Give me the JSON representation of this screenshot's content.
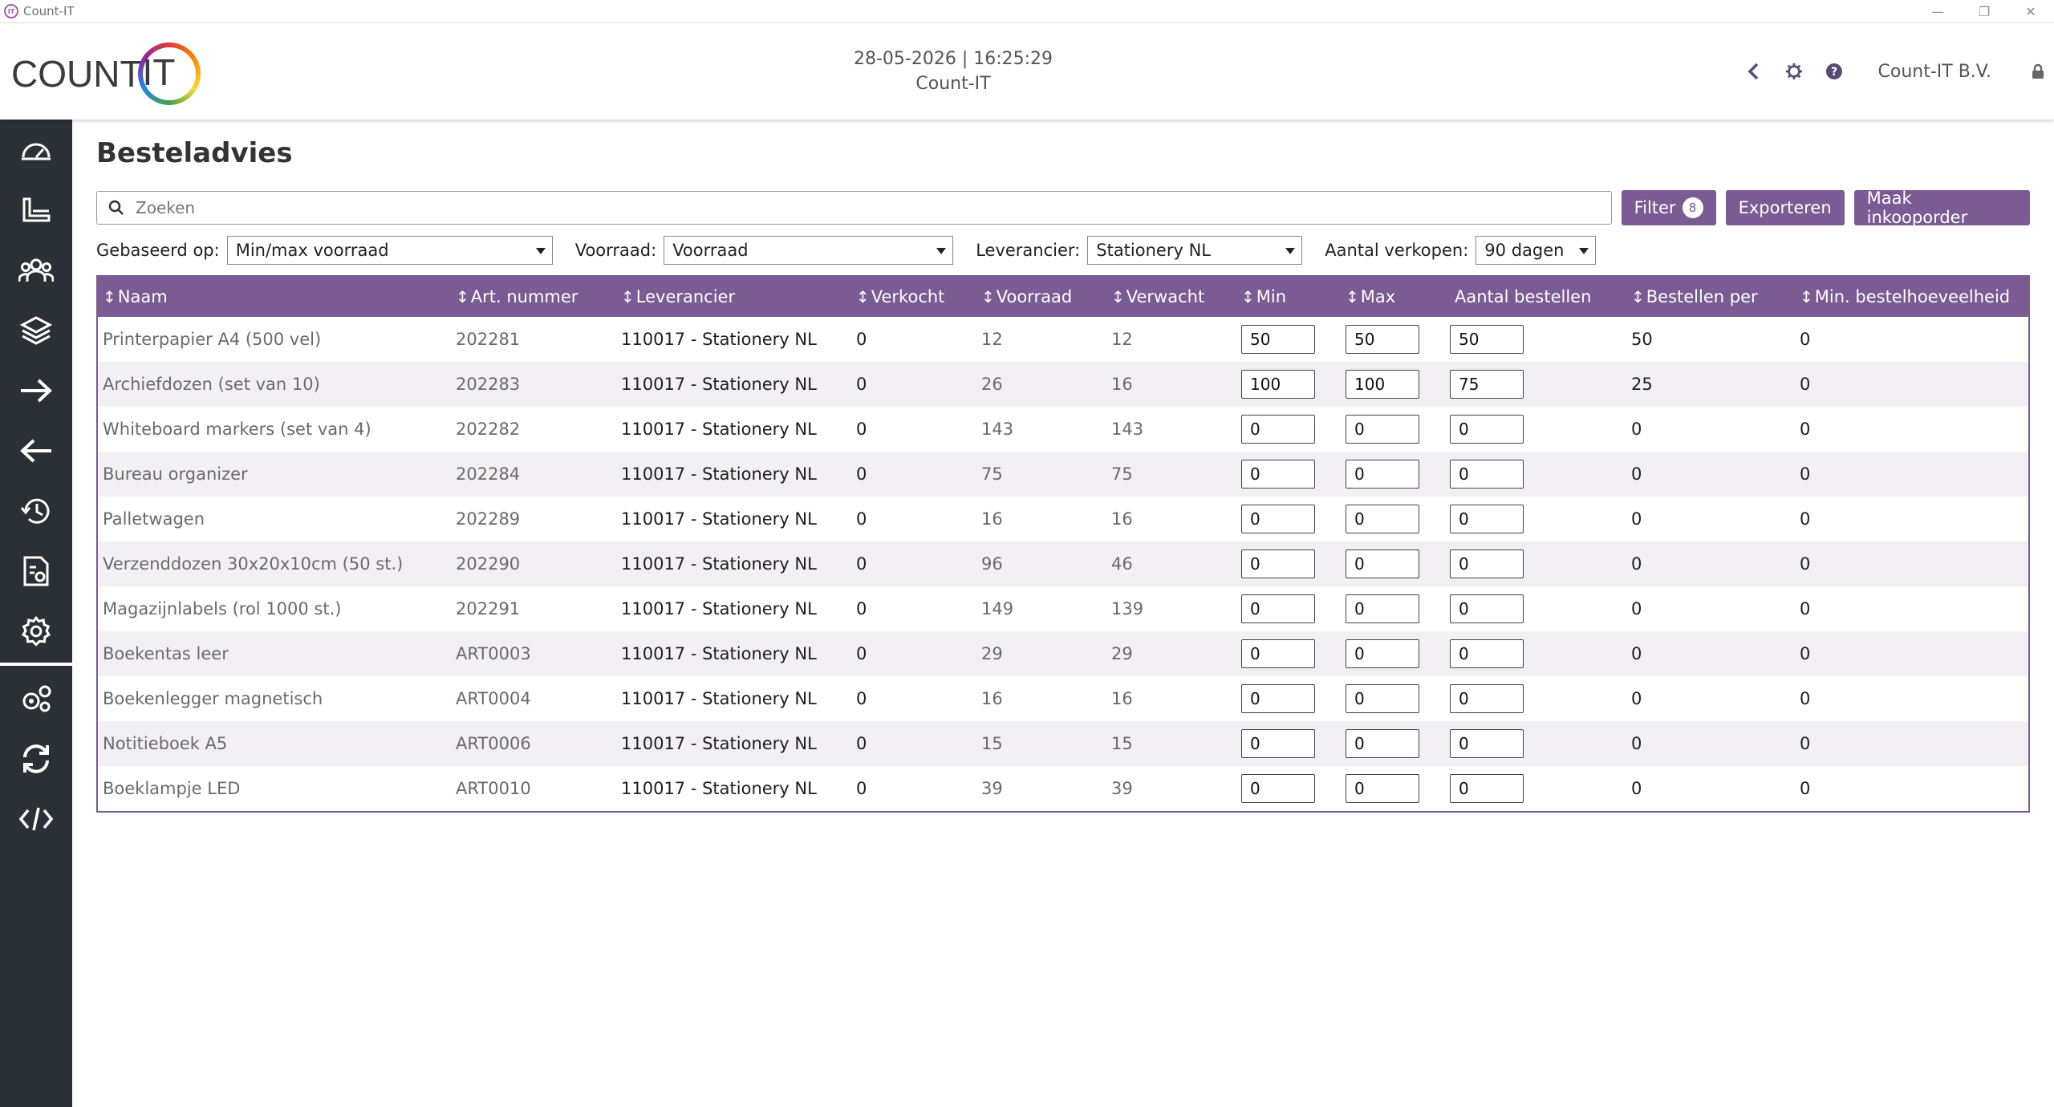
{
  "window": {
    "title": "Count-IT",
    "controls": [
      "—",
      "❐",
      "✕"
    ]
  },
  "header": {
    "logo_text": "COUNT",
    "logo_it": "IT",
    "datetime": "28-05-2026 | 16:25:29",
    "subtitle": "Count-IT",
    "company": "Count-IT B.V.",
    "icons": [
      "back-icon",
      "gear-icon",
      "help-icon",
      "lock-icon"
    ]
  },
  "sidebar": {
    "items": [
      "dashboard-icon",
      "desk-icon",
      "users-icon",
      "layers-icon",
      "arrow-right-icon",
      "arrow-left-icon",
      "history-icon",
      "report-icon",
      "settings-icon",
      "multi-gear-icon",
      "sync-icon",
      "code-icon"
    ]
  },
  "page": {
    "title": "Besteladvies",
    "search_placeholder": "Zoeken",
    "filter_label": "Filter",
    "filter_count": "8",
    "export_label": "Exporteren",
    "create_order_label": "Maak inkooporder"
  },
  "filters": {
    "based_on_label": "Gebaseerd op:",
    "based_on_value": "Min/max voorraad",
    "stock_label": "Voorraad:",
    "stock_value": "Voorraad",
    "supplier_label": "Leverancier:",
    "supplier_value": "Stationery NL",
    "sales_label": "Aantal verkopen:",
    "sales_value": "90 dagen"
  },
  "table": {
    "columns": [
      "Naam",
      "Art. nummer",
      "Leverancier",
      "Verkocht",
      "Voorraad",
      "Verwacht",
      "Min",
      "Max",
      "Aantal bestellen",
      "Bestellen per",
      "Min. bestelhoeveelheid"
    ],
    "rows": [
      [
        "Printerpapier A4 (500 vel)",
        "202281",
        "110017 - Stationery NL",
        "0",
        "12",
        "12",
        "50",
        "50",
        "50",
        "50",
        "0"
      ],
      [
        "Archiefdozen (set van 10)",
        "202283",
        "110017 - Stationery NL",
        "0",
        "26",
        "16",
        "100",
        "100",
        "75",
        "25",
        "0"
      ],
      [
        "Whiteboard markers (set van 4)",
        "202282",
        "110017 - Stationery NL",
        "0",
        "143",
        "143",
        "0",
        "0",
        "0",
        "0",
        "0"
      ],
      [
        "Bureau organizer",
        "202284",
        "110017 - Stationery NL",
        "0",
        "75",
        "75",
        "0",
        "0",
        "0",
        "0",
        "0"
      ],
      [
        "Palletwagen",
        "202289",
        "110017 - Stationery NL",
        "0",
        "16",
        "16",
        "0",
        "0",
        "0",
        "0",
        "0"
      ],
      [
        "Verzenddozen 30x20x10cm (50 st.)",
        "202290",
        "110017 - Stationery NL",
        "0",
        "96",
        "46",
        "0",
        "0",
        "0",
        "0",
        "0"
      ],
      [
        "Magazijnlabels (rol 1000 st.)",
        "202291",
        "110017 - Stationery NL",
        "0",
        "149",
        "139",
        "0",
        "0",
        "0",
        "0",
        "0"
      ],
      [
        "Boekentas leer",
        "ART0003",
        "110017 - Stationery NL",
        "0",
        "29",
        "29",
        "0",
        "0",
        "0",
        "0",
        "0"
      ],
      [
        "Boekenlegger magnetisch",
        "ART0004",
        "110017 - Stationery NL",
        "0",
        "16",
        "16",
        "0",
        "0",
        "0",
        "0",
        "0"
      ],
      [
        "Notitieboek A5",
        "ART0006",
        "110017 - Stationery NL",
        "0",
        "15",
        "15",
        "0",
        "0",
        "0",
        "0",
        "0"
      ],
      [
        "Boeklampje LED",
        "ART0010",
        "110017 - Stationery NL",
        "0",
        "39",
        "39",
        "0",
        "0",
        "0",
        "0",
        "0"
      ]
    ]
  }
}
